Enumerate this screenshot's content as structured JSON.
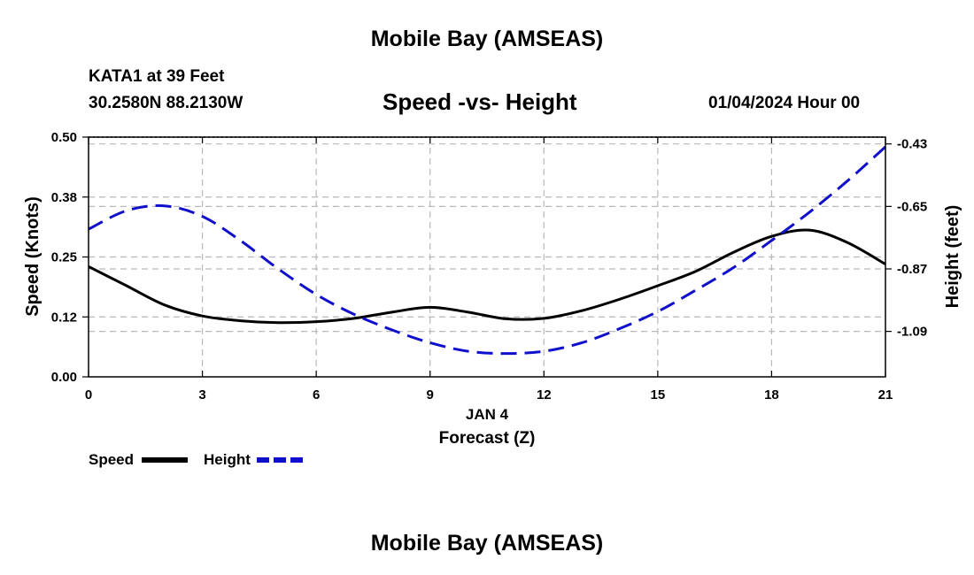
{
  "header": {
    "title": "Mobile Bay (AMSEAS)",
    "station": "KATA1 at 39 Feet",
    "coords": "30.2580N  88.2130W",
    "datetime": "01/04/2024 Hour 00",
    "footer_title": "Mobile Bay (AMSEAS)"
  },
  "legend": {
    "speed_label": "Speed",
    "height_label": "Height"
  },
  "colors": {
    "speed": "#000000",
    "height": "#1010cc",
    "grid": "#b8b8b8"
  },
  "chart_data": {
    "type": "line",
    "title": "Speed -vs- Height",
    "xlabel": "Forecast (Z)",
    "xlabel_date": "JAN 4",
    "ylabel": "Speed (Knots)",
    "y2label": "Height (feet)",
    "xlim": [
      0,
      21
    ],
    "ylim": [
      0.0,
      0.5
    ],
    "y2lim": [
      -1.25,
      -0.406
    ],
    "x_ticks": [
      0,
      3,
      6,
      9,
      12,
      15,
      18,
      21
    ],
    "x_tick_labels": [
      "0",
      "3",
      "6",
      "9",
      "12",
      "15",
      "18",
      "21"
    ],
    "y_ticks": [
      0.0,
      0.125,
      0.25,
      0.375,
      0.5
    ],
    "y_tick_labels": [
      "0.00",
      "0.12",
      "0.25",
      "0.38",
      "0.50"
    ],
    "y2_ticks": [
      -0.43,
      -0.65,
      -0.87,
      -1.09
    ],
    "y2_tick_labels": [
      "-0.43",
      "-0.65",
      "-0.87",
      "-1.09"
    ],
    "grid": true,
    "series": [
      {
        "name": "Speed",
        "axis": "left",
        "style": "solid",
        "x": [
          0,
          1,
          2,
          3,
          4,
          5,
          6,
          7,
          8,
          9,
          10,
          11,
          12,
          13,
          14,
          15,
          16,
          17,
          18,
          19,
          20,
          21
        ],
        "values": [
          0.23,
          0.19,
          0.15,
          0.127,
          0.117,
          0.113,
          0.115,
          0.122,
          0.135,
          0.145,
          0.135,
          0.121,
          0.122,
          0.138,
          0.162,
          0.19,
          0.22,
          0.26,
          0.293,
          0.306,
          0.28,
          0.235
        ]
      },
      {
        "name": "Height",
        "axis": "right",
        "style": "dashed",
        "x": [
          0,
          1,
          2,
          3,
          4,
          5,
          6,
          7,
          8,
          9,
          10,
          11,
          12,
          13,
          14,
          15,
          16,
          17,
          18,
          19,
          20,
          21
        ],
        "values": [
          -0.73,
          -0.665,
          -0.648,
          -0.685,
          -0.77,
          -0.87,
          -0.96,
          -1.03,
          -1.085,
          -1.13,
          -1.16,
          -1.168,
          -1.16,
          -1.13,
          -1.08,
          -1.02,
          -0.945,
          -0.865,
          -0.77,
          -0.67,
          -0.56,
          -0.44
        ]
      }
    ]
  }
}
